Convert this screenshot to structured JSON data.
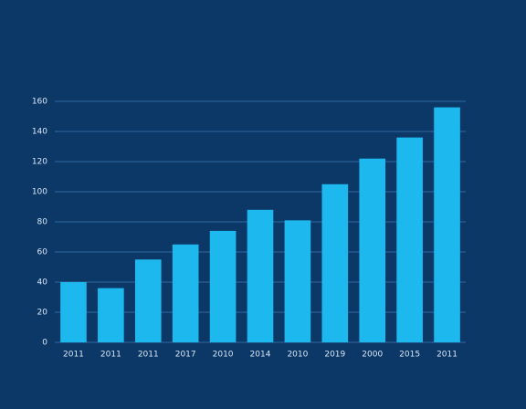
{
  "chart_data": {
    "type": "bar",
    "categories": [
      "2011",
      "2011",
      "2011",
      "2017",
      "2010",
      "2014",
      "2010",
      "2019",
      "2000",
      "2015",
      "2011"
    ],
    "values": [
      40,
      36,
      55,
      65,
      74,
      88,
      81,
      105,
      122,
      136,
      156
    ],
    "color": "#1cb8ee",
    "ylim": [
      0,
      160
    ],
    "yticks": [
      0,
      20,
      40,
      60,
      80,
      100,
      120,
      140,
      160
    ],
    "grid": true
  }
}
